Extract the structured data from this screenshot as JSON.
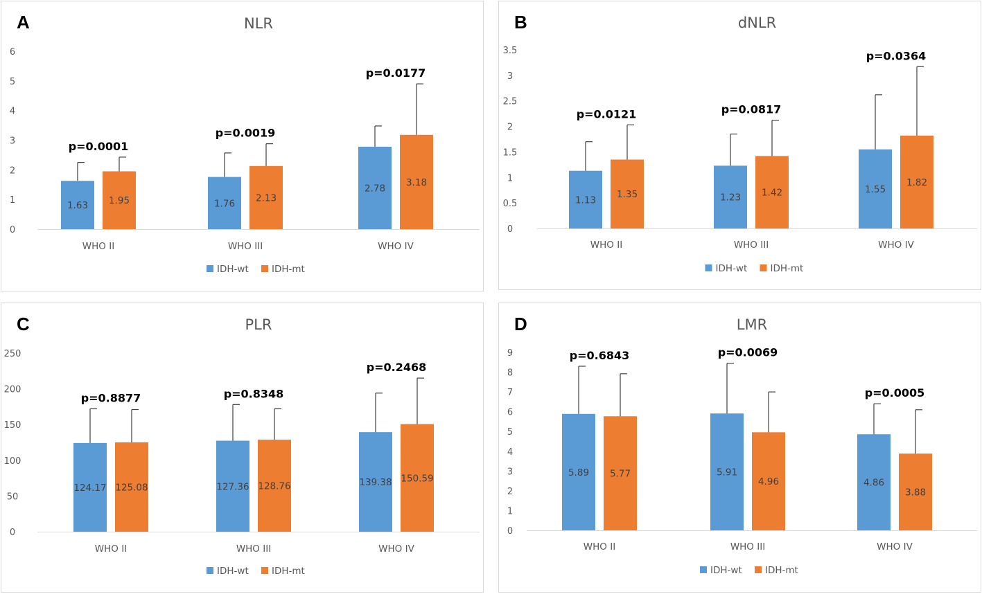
{
  "chart_data": [
    {
      "panel_label": "A",
      "type": "bar",
      "title": "NLR",
      "categories": [
        "WHO II",
        "WHO III",
        "WHO IV"
      ],
      "yticks": [
        "0",
        "1",
        "2",
        "3",
        "4",
        "5",
        "6"
      ],
      "ylim": [
        0,
        6
      ],
      "series": [
        {
          "name": "IDH-wt",
          "color": "#5b9bd5",
          "values": [
            1.63,
            1.76,
            2.78
          ],
          "error_top": [
            2.25,
            2.57,
            3.48
          ],
          "labels": [
            "1.63",
            "1.76",
            "2.78"
          ]
        },
        {
          "name": "IDH-mt",
          "color": "#ed7d31",
          "values": [
            1.95,
            2.13,
            3.18
          ],
          "error_top": [
            2.43,
            2.88,
            4.9
          ],
          "labels": [
            "1.95",
            "2.13",
            "3.18"
          ]
        }
      ],
      "pvalues": [
        "p=0.0001",
        "p=0.0019",
        "p=0.0177"
      ]
    },
    {
      "panel_label": "B",
      "type": "bar",
      "title": "dNLR",
      "categories": [
        "WHO II",
        "WHO III",
        "WHO IV"
      ],
      "yticks": [
        "0",
        "0.5",
        "1",
        "1.5",
        "2",
        "2.5",
        "3",
        "3.5"
      ],
      "ylim": [
        0,
        3.5
      ],
      "series": [
        {
          "name": "IDH-wt",
          "color": "#5b9bd5",
          "values": [
            1.13,
            1.23,
            1.55
          ],
          "error_top": [
            1.7,
            1.85,
            2.62
          ],
          "labels": [
            "1.13",
            "1.23",
            "1.55"
          ]
        },
        {
          "name": "IDH-mt",
          "color": "#ed7d31",
          "values": [
            1.35,
            1.42,
            1.82
          ],
          "error_top": [
            2.03,
            2.12,
            3.17
          ],
          "labels": [
            "1.35",
            "1.42",
            "1.82"
          ]
        }
      ],
      "pvalues": [
        "p=0.0121",
        "p=0.0817",
        "p=0.0364"
      ]
    },
    {
      "panel_label": "C",
      "type": "bar",
      "title": "PLR",
      "categories": [
        "WHO II",
        "WHO III",
        "WHO IV"
      ],
      "yticks": [
        "0",
        "50",
        "100",
        "150",
        "200",
        "250"
      ],
      "ylim": [
        0,
        250
      ],
      "series": [
        {
          "name": "IDH-wt",
          "color": "#5b9bd5",
          "values": [
            124.17,
            127.36,
            139.38
          ],
          "error_top": [
            172,
            178,
            194
          ],
          "labels": [
            "124.17",
            "127.36",
            "139.38"
          ]
        },
        {
          "name": "IDH-mt",
          "color": "#ed7d31",
          "values": [
            125.08,
            128.76,
            150.59
          ],
          "error_top": [
            171,
            172,
            215
          ],
          "labels": [
            "125.08",
            "128.76",
            "150.59"
          ]
        }
      ],
      "pvalues": [
        "p=0.8877",
        "p=0.8348",
        "p=0.2468"
      ]
    },
    {
      "panel_label": "D",
      "type": "bar",
      "title": "LMR",
      "categories": [
        "WHO II",
        "WHO III",
        "WHO IV"
      ],
      "yticks": [
        "0",
        "1",
        "2",
        "3",
        "4",
        "5",
        "6",
        "7",
        "8",
        "9"
      ],
      "ylim": [
        0,
        9
      ],
      "series": [
        {
          "name": "IDH-wt",
          "color": "#5b9bd5",
          "values": [
            5.89,
            5.91,
            4.86
          ],
          "error_top": [
            8.3,
            8.45,
            6.4
          ],
          "labels": [
            "5.89",
            "5.91",
            "4.86"
          ]
        },
        {
          "name": "IDH-mt",
          "color": "#ed7d31",
          "values": [
            5.77,
            4.96,
            3.88
          ],
          "error_top": [
            7.92,
            7.0,
            6.1
          ],
          "labels": [
            "5.77",
            "4.96",
            "3.88"
          ]
        }
      ],
      "pvalues": [
        "p=0.6843",
        "p=0.0069",
        "p=0.0005"
      ]
    }
  ]
}
